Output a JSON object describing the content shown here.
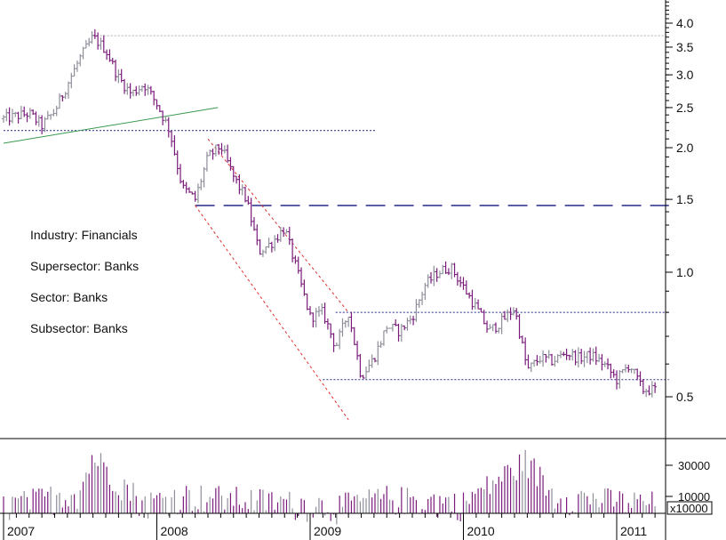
{
  "chart_data": {
    "type": "ohlc",
    "y_scale": "log",
    "ylim": [
      0.38,
      4.6
    ],
    "y_ticks": [
      "4.0",
      "3.5",
      "3.0",
      "2.5",
      "2.0",
      "1.5",
      "1.0",
      "0.5"
    ],
    "x_ticks": [
      "2007",
      "2008",
      "2009",
      "2010",
      "2011"
    ],
    "x_range": [
      "2007-01",
      "2011-03"
    ],
    "volume": {
      "unit_label": "x10000",
      "ticks": [
        "30000",
        "10000"
      ]
    },
    "info": {
      "industry": "Industry: Financials",
      "supersector": "Supersector: Banks",
      "sector": "Sector: Banks",
      "subsector": "Subsector: Banks"
    },
    "price_path": [
      [
        "2007-01",
        2.35
      ],
      [
        "2007-03",
        2.42
      ],
      [
        "2007-04",
        2.26
      ],
      [
        "2007-05",
        2.45
      ],
      [
        "2007-06",
        2.85
      ],
      [
        "2007-07",
        3.3
      ],
      [
        "2007-08",
        3.7
      ],
      [
        "2007-09",
        3.45
      ],
      [
        "2007-10",
        2.95
      ],
      [
        "2007-11",
        2.7
      ],
      [
        "2007-12",
        2.85
      ],
      [
        "2008-01",
        2.55
      ],
      [
        "2008-02",
        2.2
      ],
      [
        "2008-03",
        1.6
      ],
      [
        "2008-04",
        1.5
      ],
      [
        "2008-05",
        1.9
      ],
      [
        "2008-06",
        2.02
      ],
      [
        "2008-07",
        1.7
      ],
      [
        "2008-08",
        1.5
      ],
      [
        "2008-09",
        1.12
      ],
      [
        "2008-10",
        1.18
      ],
      [
        "2008-11",
        1.28
      ],
      [
        "2008-12",
        1.0
      ],
      [
        "2009-01",
        0.78
      ],
      [
        "2009-02",
        0.8
      ],
      [
        "2009-03",
        0.66
      ],
      [
        "2009-04",
        0.8
      ],
      [
        "2009-05",
        0.56
      ],
      [
        "2009-06",
        0.62
      ],
      [
        "2009-07",
        0.74
      ],
      [
        "2009-08",
        0.72
      ],
      [
        "2009-09",
        0.78
      ],
      [
        "2009-10",
        0.93
      ],
      [
        "2009-11",
        1.0
      ],
      [
        "2009-12",
        1.03
      ],
      [
        "2010-01",
        0.92
      ],
      [
        "2010-02",
        0.82
      ],
      [
        "2010-03",
        0.72
      ],
      [
        "2010-04",
        0.76
      ],
      [
        "2010-05",
        0.82
      ],
      [
        "2010-06",
        0.58
      ],
      [
        "2010-07",
        0.62
      ],
      [
        "2010-08",
        0.61
      ],
      [
        "2010-09",
        0.64
      ],
      [
        "2010-10",
        0.62
      ],
      [
        "2010-11",
        0.63
      ],
      [
        "2010-12",
        0.6
      ],
      [
        "2011-01",
        0.55
      ],
      [
        "2011-02",
        0.6
      ],
      [
        "2011-03",
        0.52
      ]
    ],
    "volume_path": [
      [
        "2007-01",
        8000
      ],
      [
        "2007-07",
        14000
      ],
      [
        "2007-08",
        48000
      ],
      [
        "2007-12",
        9000
      ],
      [
        "2008-03",
        12000
      ],
      [
        "2008-09",
        10000
      ],
      [
        "2009-03",
        8000
      ],
      [
        "2009-07",
        11000
      ],
      [
        "2010-01",
        9000
      ],
      [
        "2010-06",
        42000
      ],
      [
        "2010-08",
        12000
      ],
      [
        "2011-03",
        9000
      ]
    ],
    "reference_lines": [
      {
        "style": "gray-dotted",
        "y": 3.73,
        "from": "2007-08",
        "to": "2011-03"
      },
      {
        "style": "navy-dotted",
        "y": 2.2,
        "from": "2007-01",
        "to": "2009-04"
      },
      {
        "style": "navy-dashed",
        "y": 1.45,
        "from": "2008-04",
        "to": "2011-03"
      },
      {
        "style": "navy-dotted",
        "y": 0.8,
        "from": "2009-03",
        "to": "2011-03"
      },
      {
        "style": "navy-dotted",
        "y": 0.55,
        "from": "2009-02",
        "to": "2011-03"
      }
    ],
    "trend_lines": [
      {
        "color": "#3a9a50",
        "from": [
          "2007-01",
          2.05
        ],
        "to": [
          "2008-03",
          2.5
        ]
      },
      {
        "color": "#e03030",
        "from": [
          "2008-05",
          2.1
        ],
        "to": [
          "2009-04",
          0.8
        ]
      },
      {
        "color": "#e03030",
        "from": [
          "2008-04",
          1.45
        ],
        "to": [
          "2009-04",
          0.44
        ]
      }
    ],
    "colors": {
      "up": "#8e8e9a",
      "down": "#7a1a7a",
      "volume": "#7a1a7a",
      "axis": "#000000"
    }
  }
}
